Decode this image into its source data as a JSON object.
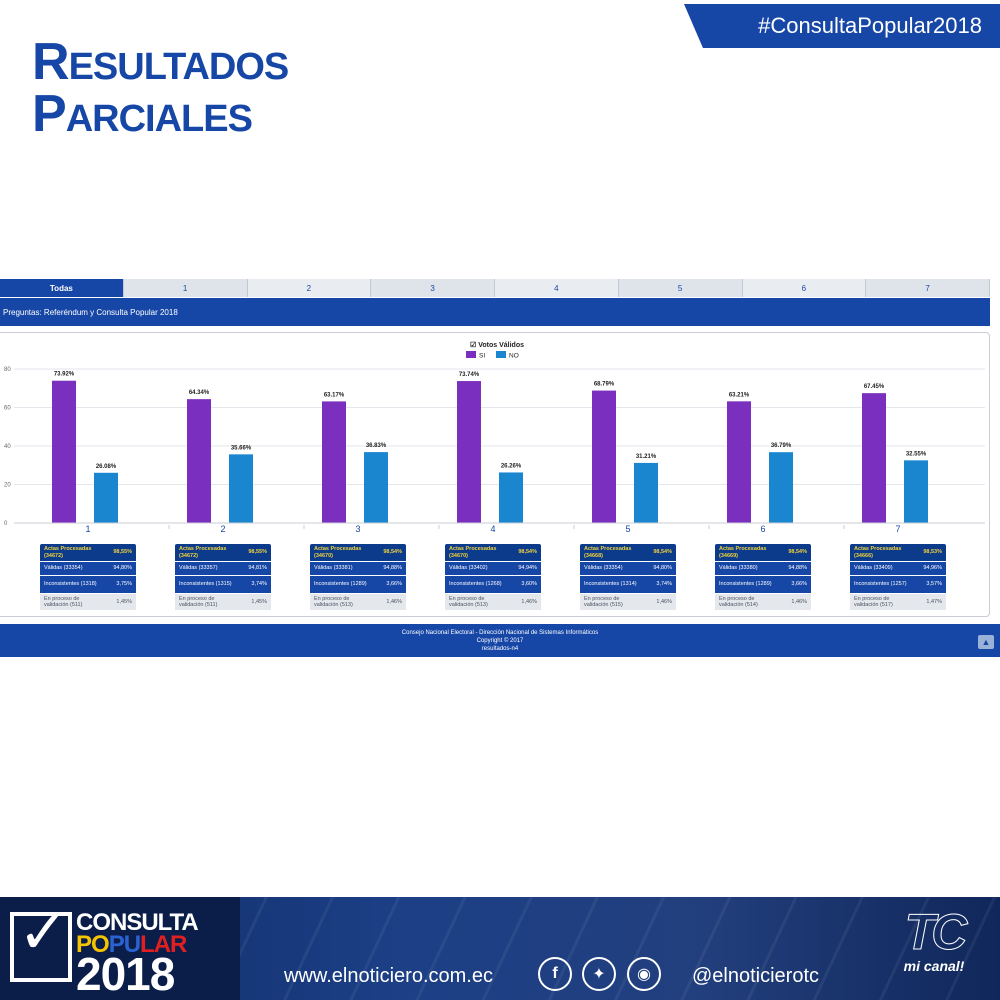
{
  "page": {
    "title_line1": "Resultados",
    "title_line2": "Parciales",
    "hashtag": "#ConsultaPopular2018"
  },
  "tabs": [
    "Todas",
    "1",
    "2",
    "3",
    "4",
    "5",
    "6",
    "7"
  ],
  "question_bar": "Preguntas: Referéndum y Consulta Popular 2018",
  "chart_data": {
    "type": "bar",
    "title": "",
    "legend_title": "Votos Válidos",
    "legend_placement": "top-center",
    "categories": [
      "1",
      "2",
      "3",
      "4",
      "5",
      "6",
      "7"
    ],
    "series": [
      {
        "name": "SI",
        "color": "#7b2fbf",
        "values": [
          73.92,
          64.34,
          63.17,
          73.74,
          68.79,
          63.21,
          67.45
        ],
        "labels": [
          "73.92%",
          "64.34%",
          "63.17%",
          "73.74%",
          "68.79%",
          "63.21%",
          "67.45%"
        ]
      },
      {
        "name": "NO",
        "color": "#1a86d0",
        "values": [
          26.08,
          35.66,
          36.83,
          26.26,
          31.21,
          36.79,
          32.55
        ],
        "labels": [
          "26.08%",
          "35.66%",
          "36.83%",
          "26.26%",
          "31.21%",
          "36.79%",
          "32.55%"
        ]
      }
    ],
    "yticks": [
      "0",
      "20",
      "40",
      "60",
      "80"
    ],
    "ylim": [
      0,
      80
    ],
    "grid": true
  },
  "stats": [
    {
      "procesadas": "Actas Procesadas (34672)",
      "procesadas_pct": "98,55%",
      "validas": "Válidas (33354)",
      "validas_pct": "94,80%",
      "inconsistentes": "Inconsistentes (1318)",
      "inconsistentes_pct": "3,75%",
      "proceso": "En proceso de validación (511)",
      "proceso_pct": "1,45%"
    },
    {
      "procesadas": "Actas Procesadas (34672)",
      "procesadas_pct": "98,55%",
      "validas": "Válidas (33357)",
      "validas_pct": "94,81%",
      "inconsistentes": "Inconsistentes (1315)",
      "inconsistentes_pct": "3,74%",
      "proceso": "En proceso de validación (511)",
      "proceso_pct": "1,45%"
    },
    {
      "procesadas": "Actas Procesadas (34670)",
      "procesadas_pct": "98,54%",
      "validas": "Válidas (33381)",
      "validas_pct": "94,88%",
      "inconsistentes": "Inconsistentes (1289)",
      "inconsistentes_pct": "3,66%",
      "proceso": "En proceso de validación (513)",
      "proceso_pct": "1,46%"
    },
    {
      "procesadas": "Actas Procesadas (34670)",
      "procesadas_pct": "98,54%",
      "validas": "Válidas (33402)",
      "validas_pct": "94,94%",
      "inconsistentes": "Inconsistentes (1268)",
      "inconsistentes_pct": "3,60%",
      "proceso": "En proceso de validación (513)",
      "proceso_pct": "1,46%"
    },
    {
      "procesadas": "Actas Procesadas (34668)",
      "procesadas_pct": "98,54%",
      "validas": "Válidas (33354)",
      "validas_pct": "94,80%",
      "inconsistentes": "Inconsistentes (1314)",
      "inconsistentes_pct": "3,74%",
      "proceso": "En proceso de validación (515)",
      "proceso_pct": "1,46%"
    },
    {
      "procesadas": "Actas Procesadas (34669)",
      "procesadas_pct": "98,54%",
      "validas": "Válidas (33380)",
      "validas_pct": "94,88%",
      "inconsistentes": "Inconsistentes (1289)",
      "inconsistentes_pct": "3,66%",
      "proceso": "En proceso de validación (514)",
      "proceso_pct": "1,46%"
    },
    {
      "procesadas": "Actas Procesadas (34666)",
      "procesadas_pct": "98,53%",
      "validas": "Válidas (33409)",
      "validas_pct": "94,96%",
      "inconsistentes": "Inconsistentes (1257)",
      "inconsistentes_pct": "3,57%",
      "proceso": "En proceso de validación (517)",
      "proceso_pct": "1,47%"
    }
  ],
  "footer": {
    "line1": "Consejo Nacional Electoral - Dirección Nacional de Sistemas Informáticos",
    "line2": "Copyright © 2017",
    "line3": "resultados-n4"
  },
  "brand": {
    "logo_consulta": "CONSULTA",
    "logo_po": "PO",
    "logo_pu": "PU",
    "logo_lar": "LAR",
    "logo_year": "2018",
    "website": "www.elnoticiero.com.ec",
    "handle": "@elnoticierotc",
    "tc_logo": "TC",
    "tc_tagline": "mi canal!",
    "icons": [
      "facebook-icon",
      "twitter-icon",
      "instagram-icon"
    ]
  }
}
